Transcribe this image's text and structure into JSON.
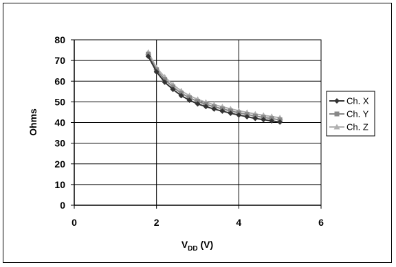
{
  "chart_data": {
    "type": "line",
    "title": "",
    "xlabel_main": "V",
    "xlabel_sub": "DD",
    "xlabel_unit": " (V)",
    "ylabel": "Ohms",
    "xlim": [
      0,
      6
    ],
    "ylim": [
      0,
      80
    ],
    "xticks": [
      "0",
      "2",
      "4",
      "6"
    ],
    "yticks": [
      "0",
      "10",
      "20",
      "30",
      "40",
      "50",
      "60",
      "70",
      "80"
    ],
    "grid": "horizontal and vertical major lines",
    "legend_position": "right",
    "x": [
      1.8,
      2.0,
      2.2,
      2.4,
      2.6,
      2.8,
      3.0,
      3.2,
      3.4,
      3.6,
      3.8,
      4.0,
      4.2,
      4.4,
      4.6,
      4.8,
      5.0
    ],
    "series": [
      {
        "name": "Ch. X",
        "marker": "diamond",
        "color": "#333333",
        "values": [
          72,
          64.5,
          59.5,
          56,
          53,
          50.8,
          49,
          47.7,
          46.5,
          45.5,
          44.5,
          43.6,
          42.8,
          42,
          41.4,
          40.8,
          40.2
        ]
      },
      {
        "name": "Ch. Y",
        "marker": "square",
        "color": "#888888",
        "values": [
          73,
          65.5,
          60.8,
          57.2,
          54.2,
          52,
          50.2,
          48.8,
          47.6,
          46.6,
          45.6,
          44.7,
          43.9,
          43.1,
          42.5,
          41.9,
          41.3
        ]
      },
      {
        "name": "Ch. Z",
        "marker": "triangle",
        "color": "#b0b0b0",
        "values": [
          74,
          66.5,
          62,
          58.3,
          55.3,
          53,
          51.2,
          49.8,
          48.6,
          47.6,
          46.6,
          45.7,
          44.9,
          44.1,
          43.5,
          42.9,
          42.3
        ]
      }
    ]
  }
}
